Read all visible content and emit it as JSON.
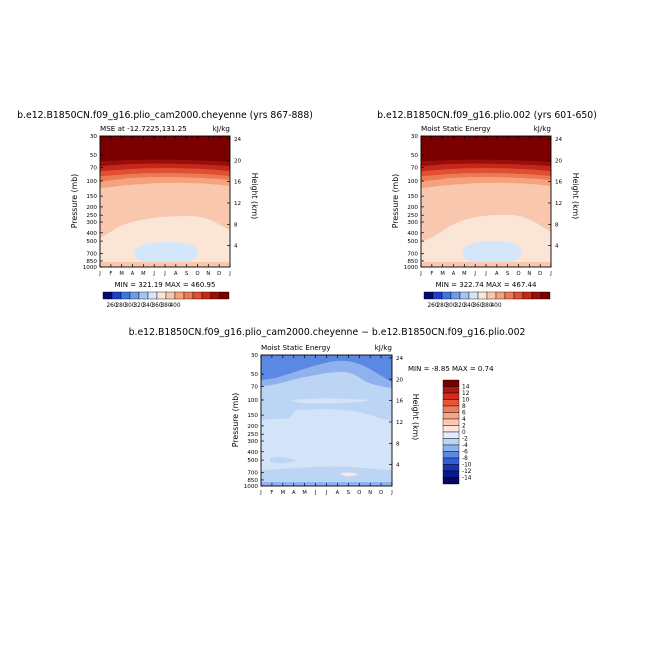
{
  "chart_data": [
    {
      "type": "heatmap",
      "title": "b.e12.B1850CN.f09_g16.plio_cam2000.cheyenne (yrs 867-888)",
      "subtitle_left": "MSE at -12.7225,131.25",
      "subtitle_right": "kJ/kg",
      "ylabel": "Pressure (mb)",
      "ylabel_right": "Height (km)",
      "x_ticks": [
        "J",
        "F",
        "M",
        "A",
        "M",
        "J",
        "J",
        "A",
        "S",
        "O",
        "N",
        "D",
        "J"
      ],
      "y_ticks": [
        "30",
        "50",
        "70",
        "100",
        "150",
        "200",
        "250",
        "300",
        "400",
        "500",
        "700",
        "850",
        "1000"
      ],
      "y_ticks_right": [
        "24",
        "20",
        "16",
        "12",
        "8",
        "4"
      ],
      "stats": "MIN = 321.19   MAX = 460.95",
      "colorbar": {
        "levels": [
          "260",
          "280",
          "300",
          "320",
          "340",
          "360",
          "380",
          "400"
        ],
        "colors": [
          "#08086e",
          "#1c3fd0",
          "#3e76de",
          "#6e9ce8",
          "#a4c4f2",
          "#d4e6fa",
          "#fbe5d6",
          "#f9c7ad",
          "#f4a37e",
          "#ec7a55",
          "#e04f31",
          "#c4281a",
          "#9a0e0a",
          "#7a0000"
        ]
      }
    },
    {
      "type": "heatmap",
      "title": "b.e12.B1850CN.f09_g16.plio.002 (yrs 601-650)",
      "subtitle_left": "Moist Static Energy",
      "subtitle_right": "kJ/kg",
      "ylabel": "Pressure (mb)",
      "ylabel_right": "Height (km)",
      "x_ticks": [
        "J",
        "F",
        "M",
        "A",
        "M",
        "J",
        "J",
        "A",
        "S",
        "O",
        "N",
        "D",
        "J"
      ],
      "y_ticks": [
        "30",
        "50",
        "70",
        "100",
        "150",
        "200",
        "250",
        "300",
        "400",
        "500",
        "700",
        "850",
        "1000"
      ],
      "y_ticks_right": [
        "24",
        "20",
        "16",
        "12",
        "8",
        "4"
      ],
      "stats": "MIN = 322.74   MAX = 467.44",
      "colorbar": {
        "levels": [
          "260",
          "280",
          "300",
          "320",
          "340",
          "360",
          "380",
          "400"
        ],
        "colors": [
          "#08086e",
          "#1c3fd0",
          "#3e76de",
          "#6e9ce8",
          "#a4c4f2",
          "#d4e6fa",
          "#fbe5d6",
          "#f9c7ad",
          "#f4a37e",
          "#ec7a55",
          "#e04f31",
          "#c4281a",
          "#9a0e0a",
          "#7a0000"
        ]
      }
    },
    {
      "type": "heatmap",
      "title": "b.e12.B1850CN.f09_g16.plio_cam2000.cheyenne − b.e12.B1850CN.f09_g16.plio.002",
      "subtitle_left": "Moist Static Energy",
      "subtitle_right": "kJ/kg",
      "ylabel": "Pressure (mb)",
      "ylabel_right": "Height (km)",
      "x_ticks": [
        "J",
        "F",
        "M",
        "A",
        "M",
        "J",
        "J",
        "A",
        "S",
        "O",
        "N",
        "D",
        "J"
      ],
      "y_ticks": [
        "30",
        "50",
        "70",
        "100",
        "150",
        "200",
        "250",
        "300",
        "400",
        "500",
        "700",
        "850",
        "1000"
      ],
      "y_ticks_right": [
        "24",
        "20",
        "16",
        "12",
        "8",
        "4"
      ],
      "stats": "MIN =   -8.85  MAX =    0.74",
      "colorbar": {
        "levels": [
          "14",
          "12",
          "10",
          "8",
          "6",
          "4",
          "2",
          "0",
          "-2",
          "-4",
          "-6",
          "-8",
          "-10",
          "-12",
          "-14"
        ],
        "colors": [
          "#7a0000",
          "#b2180f",
          "#d22d1e",
          "#e4553a",
          "#ef7d5d",
          "#f6a585",
          "#fbc9b1",
          "#fde7dc",
          "#e0ecfb",
          "#bdd5f5",
          "#8fb2ee",
          "#5a88e2",
          "#2f5fd6",
          "#1433b6",
          "#0a1a8c",
          "#06065e"
        ]
      }
    }
  ]
}
